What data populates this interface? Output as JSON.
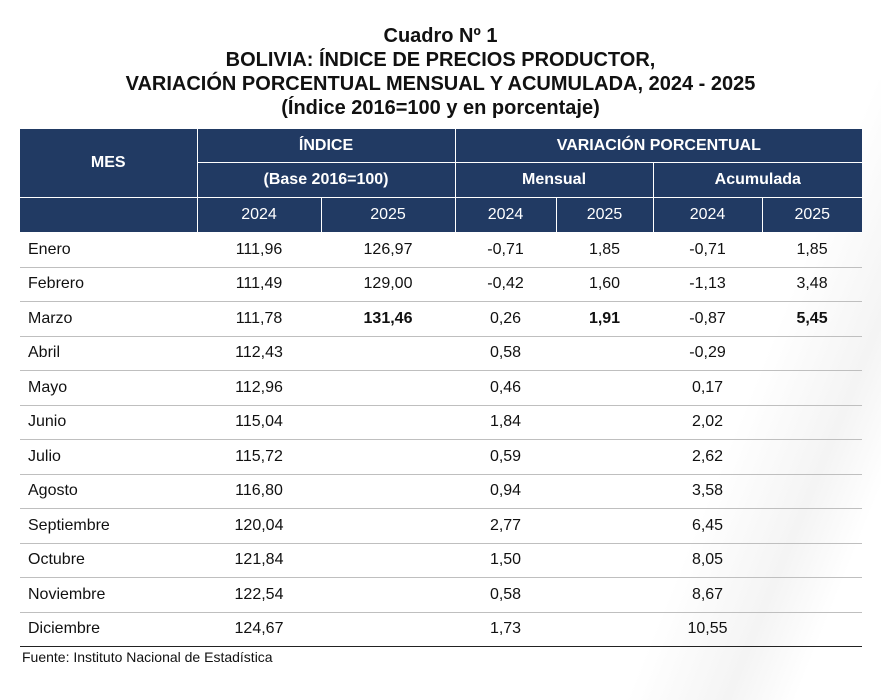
{
  "title": {
    "line1": "Cuadro Nº 1",
    "line2": "BOLIVIA: ÍNDICE DE PRECIOS PRODUCTOR,",
    "line3": "VARIACIÓN PORCENTUAL MENSUAL Y ACUMULADA, 2024 - 2025",
    "line4": "(Índice 2016=100 y en porcentaje)"
  },
  "table": {
    "header": {
      "mes": "MES",
      "indice": "ÍNDICE",
      "indice_base": "(Base 2016=100)",
      "variacion": "VARIACIÓN PORCENTUAL",
      "mensual": "Mensual",
      "acumulada": "Acumulada",
      "years": [
        "2024",
        "2025",
        "2024",
        "2025",
        "2024",
        "2025"
      ]
    },
    "rows": [
      {
        "mes": "Enero",
        "i2024": "111,96",
        "i2025": "126,97",
        "m2024": "-0,71",
        "m2025": "1,85",
        "a2024": "-0,71",
        "a2025": "1,85"
      },
      {
        "mes": "Febrero",
        "i2024": "111,49",
        "i2025": "129,00",
        "m2024": "-0,42",
        "m2025": "1,60",
        "a2024": "-1,13",
        "a2025": "3,48"
      },
      {
        "mes": "Marzo",
        "i2024": "111,78",
        "i2025": "131,46",
        "m2024": "0,26",
        "m2025": "1,91",
        "a2024": "-0,87",
        "a2025": "5,45"
      },
      {
        "mes": "Abril",
        "i2024": "112,43",
        "i2025": "",
        "m2024": "0,58",
        "m2025": "",
        "a2024": "-0,29",
        "a2025": ""
      },
      {
        "mes": "Mayo",
        "i2024": "112,96",
        "i2025": "",
        "m2024": "0,46",
        "m2025": "",
        "a2024": "0,17",
        "a2025": ""
      },
      {
        "mes": "Junio",
        "i2024": "115,04",
        "i2025": "",
        "m2024": "1,84",
        "m2025": "",
        "a2024": "2,02",
        "a2025": ""
      },
      {
        "mes": "Julio",
        "i2024": "115,72",
        "i2025": "",
        "m2024": "0,59",
        "m2025": "",
        "a2024": "2,62",
        "a2025": ""
      },
      {
        "mes": "Agosto",
        "i2024": "116,80",
        "i2025": "",
        "m2024": "0,94",
        "m2025": "",
        "a2024": "3,58",
        "a2025": ""
      },
      {
        "mes": "Septiembre",
        "i2024": "120,04",
        "i2025": "",
        "m2024": "2,77",
        "m2025": "",
        "a2024": "6,45",
        "a2025": ""
      },
      {
        "mes": "Octubre",
        "i2024": "121,84",
        "i2025": "",
        "m2024": "1,50",
        "m2025": "",
        "a2024": "8,05",
        "a2025": ""
      },
      {
        "mes": "Noviembre",
        "i2024": "122,54",
        "i2025": "",
        "m2024": "0,58",
        "m2025": "",
        "a2024": "8,67",
        "a2025": ""
      },
      {
        "mes": "Diciembre",
        "i2024": "124,67",
        "i2025": "",
        "m2024": "1,73",
        "m2025": "",
        "a2024": "10,55",
        "a2025": ""
      }
    ]
  },
  "source": "Fuente: Instituto Nacional de Estadística",
  "colors": {
    "header_bg": "#213a63",
    "header_text": "#ffffff"
  }
}
